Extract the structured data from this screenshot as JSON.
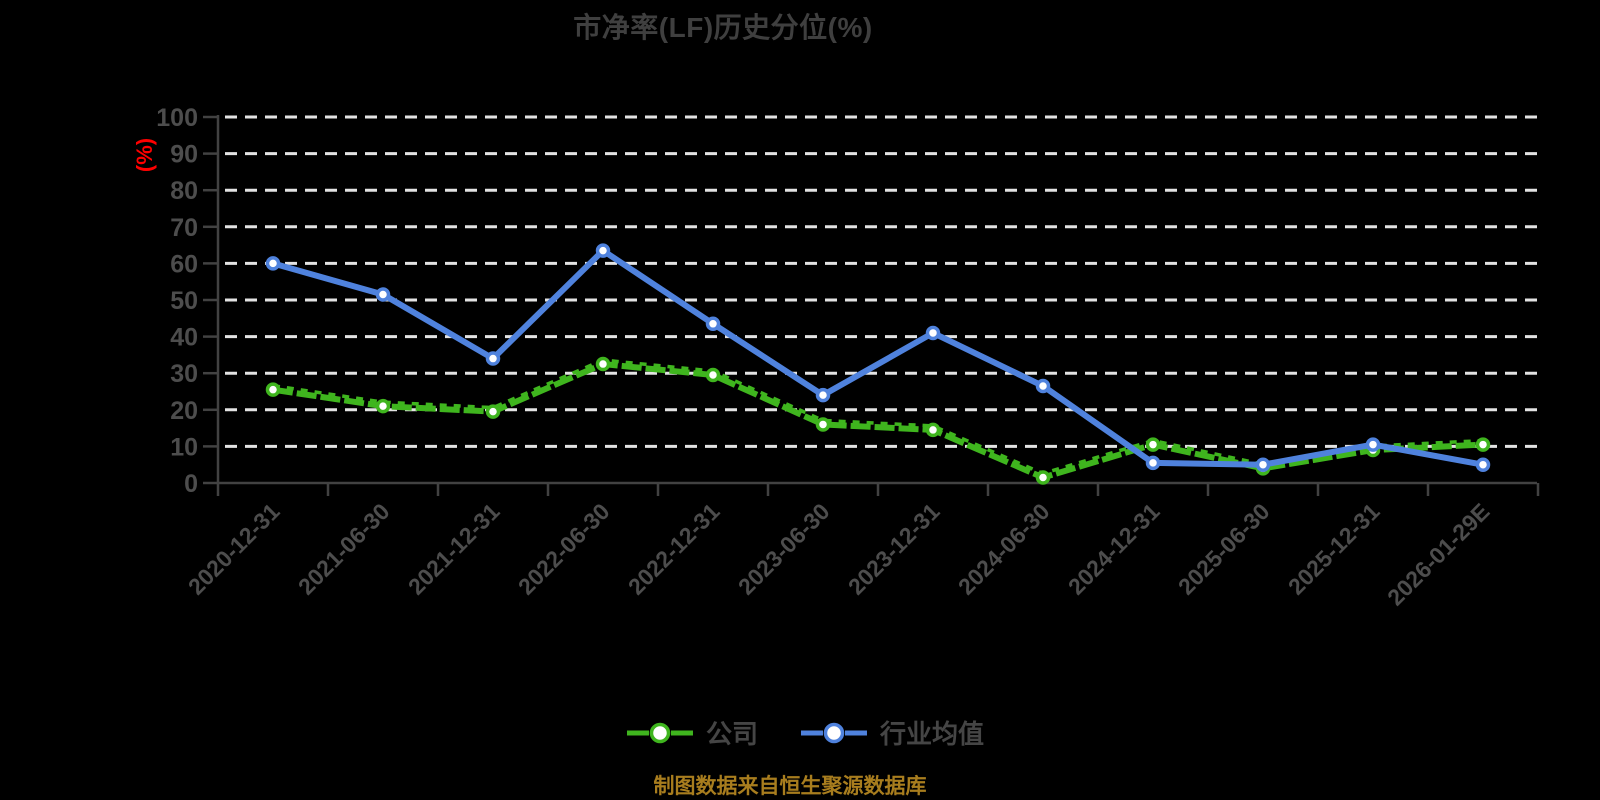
{
  "title": "市净率(LF)历史分位(%)",
  "footer": "制图数据来自恒生聚源数据库",
  "colors": {
    "background": "#000000",
    "title_text": "#3f3f3f",
    "axis_line": "#424242",
    "axis_text": "#4d4d4d",
    "gridline": "#e3e3e3",
    "y_unit_label": "#ff0000",
    "series_company": "#3fb51e",
    "series_industry": "#4f82dd",
    "marker_fill": "#ffffff",
    "legend_text": "#454545",
    "footer_text": "#a87d1e"
  },
  "chart_data": {
    "type": "line",
    "title": "市净率(LF)历史分位(%)",
    "ylabel": "(%)",
    "xlabel": "",
    "ylim": [
      0,
      100
    ],
    "ytick_step": 10,
    "grid": true,
    "grid_style": "dashed",
    "legend_position": "bottom",
    "categories": [
      "2020-12-31",
      "2021-06-30",
      "2021-12-31",
      "2022-06-30",
      "2022-12-31",
      "2023-06-30",
      "2023-12-31",
      "2024-06-30",
      "2024-12-31",
      "2025-06-30",
      "2025-12-31",
      "2026-01-29E"
    ],
    "series": [
      {
        "name": "公司",
        "color": "#3fb51e",
        "style": "double",
        "values": [
          25.5,
          21,
          19.5,
          32.5,
          29.5,
          16,
          14.5,
          1.5,
          10.5,
          4,
          9,
          10.5
        ]
      },
      {
        "name": "行业均值",
        "color": "#4f82dd",
        "style": "solid",
        "values": [
          60,
          51.5,
          34,
          63.5,
          43.5,
          24,
          41,
          26.5,
          5.5,
          5,
          10.5,
          5
        ]
      }
    ]
  }
}
